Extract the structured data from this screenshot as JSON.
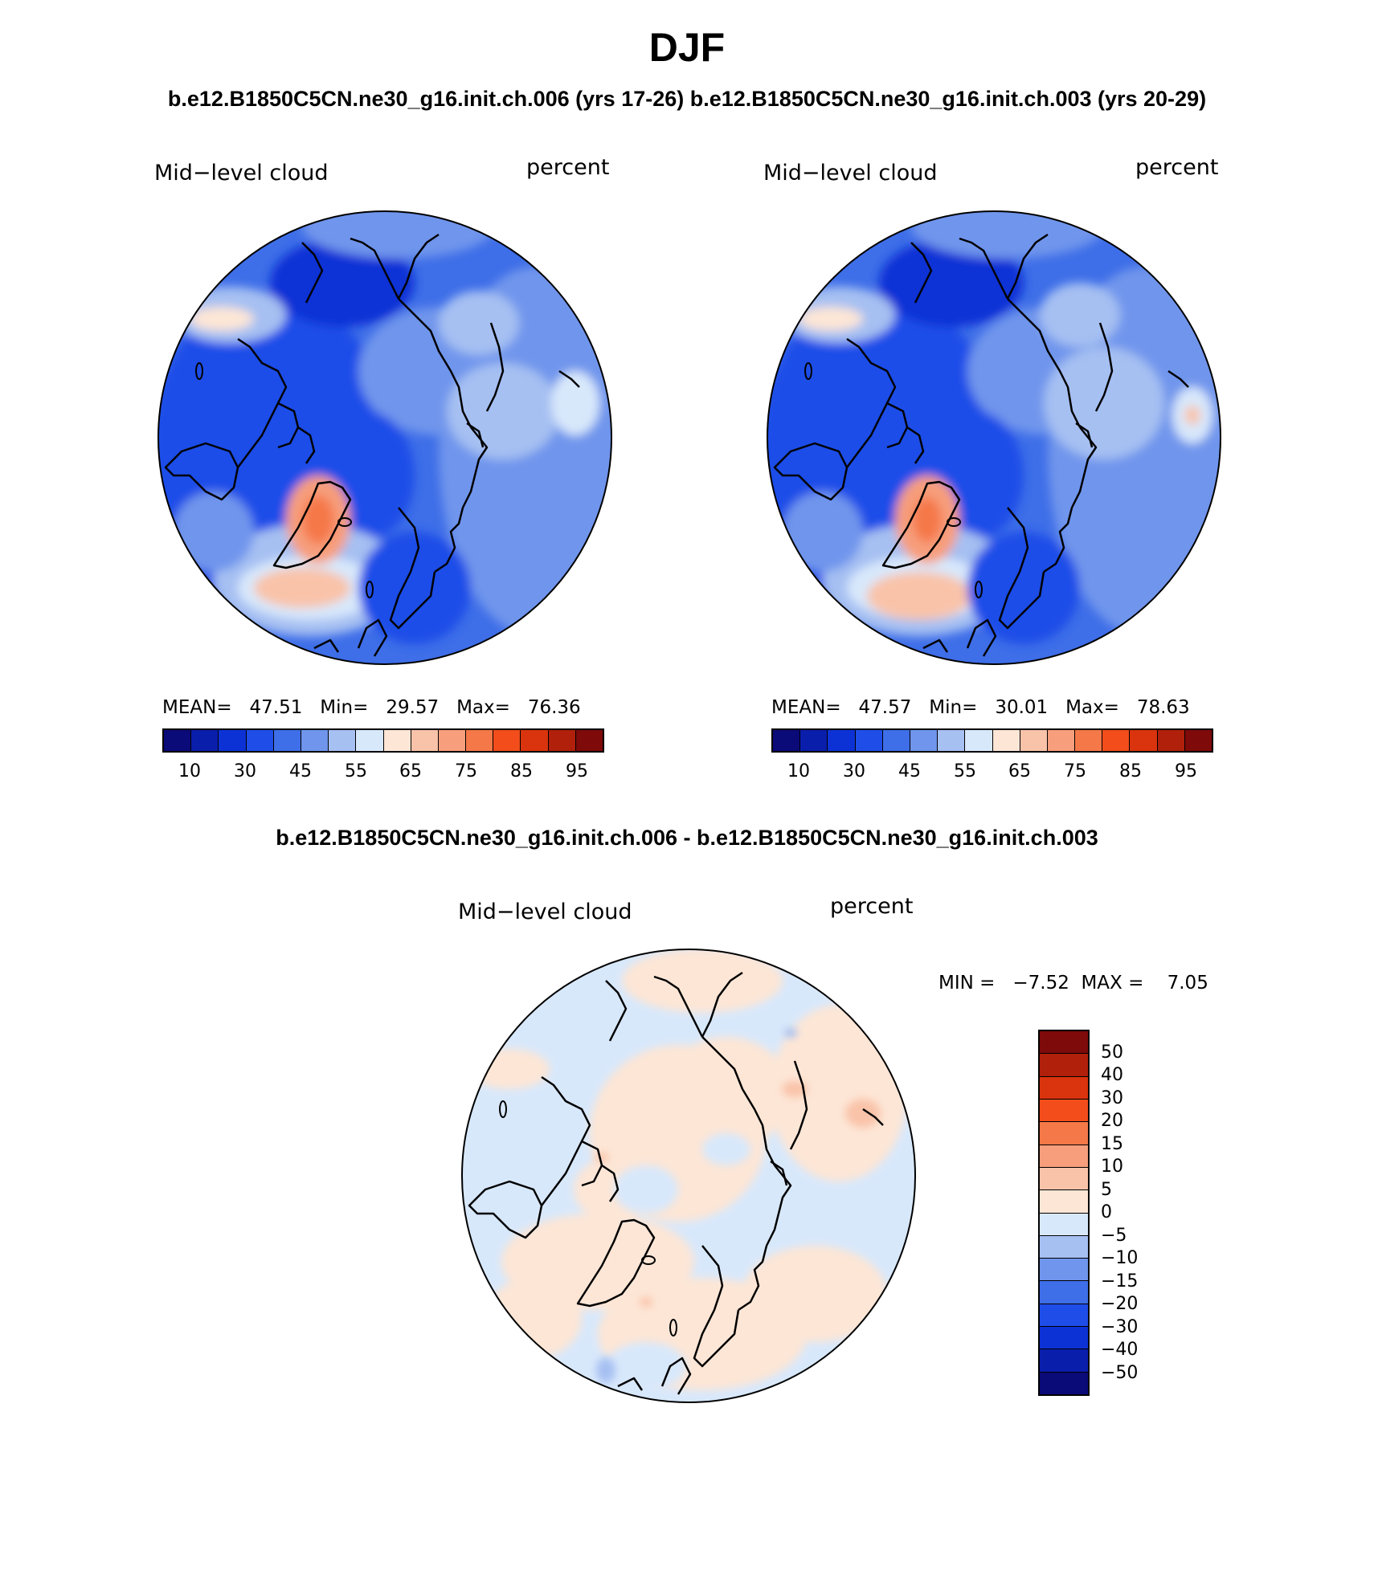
{
  "title": "DJF",
  "pair_title": "b.e12.B1850C5CN.ne30_g16.init.ch.006 (yrs 17-26) b.e12.B1850C5CN.ne30_g16.init.ch.003 (yrs 20-29)",
  "diff_title": "b.e12.B1850C5CN.ne30_g16.init.ch.006 - b.e12.B1850C5CN.ne30_g16.init.ch.003",
  "panels": [
    {
      "variable": "Mid−level cloud",
      "units": "percent",
      "stats": "MEAN=   47.51   Min=   29.57   Max=   76.36"
    },
    {
      "variable": "Mid−level cloud",
      "units": "percent",
      "stats": "MEAN=   47.57   Min=   30.01   Max=   78.63"
    },
    {
      "variable": "Mid−level cloud",
      "units": "percent",
      "stats": "MIN =   −7.52  MAX =    7.05"
    }
  ],
  "abs_colorbar": {
    "colors": [
      "#0a0a78",
      "#0a1eac",
      "#0c32d6",
      "#1f4de8",
      "#3e6ee8",
      "#6f95ec",
      "#a6c0f2",
      "#d8e8fb",
      "#fde6d6",
      "#f9c3a9",
      "#f79e7c",
      "#f57848",
      "#f24d1a",
      "#d9340d",
      "#b0200b",
      "#7e0a0a"
    ],
    "labels": [
      "10",
      "30",
      "45",
      "55",
      "65",
      "75",
      "85",
      "95"
    ]
  },
  "diff_colorbar": {
    "colors": [
      "#7e0a0a",
      "#b0200b",
      "#d9340d",
      "#f24d1a",
      "#f57848",
      "#f79e7c",
      "#f9c3a9",
      "#fde6d6",
      "#d8e8fb",
      "#a6c0f2",
      "#6f95ec",
      "#3e6ee8",
      "#1f4de8",
      "#0c32d6",
      "#0a1eac",
      "#0a0a78"
    ],
    "labels": [
      "50",
      "40",
      "30",
      "20",
      "15",
      "10",
      "5",
      "0",
      "−5",
      "−10",
      "−15",
      "−20",
      "−30",
      "−40",
      "−50"
    ]
  }
}
